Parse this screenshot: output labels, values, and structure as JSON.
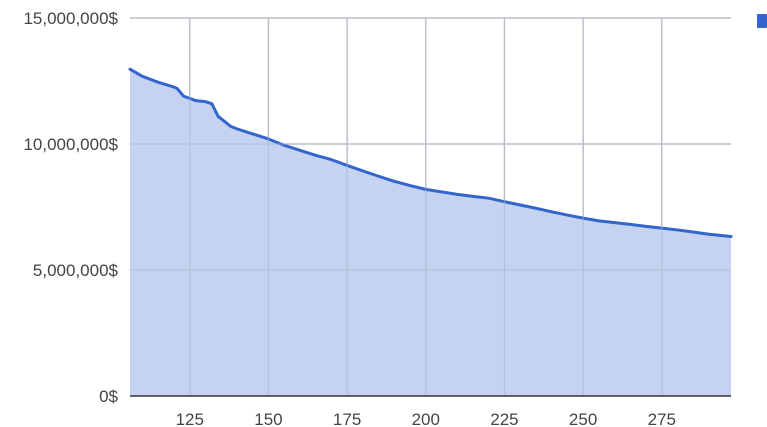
{
  "chart_data": {
    "type": "area",
    "title": "",
    "xlabel": "",
    "ylabel": "",
    "xlim": [
      106,
      297
    ],
    "ylim": [
      0,
      15000000
    ],
    "x_ticks": [
      125,
      150,
      175,
      200,
      225,
      250,
      275
    ],
    "x_tick_labels": [
      "125",
      "150",
      "175",
      "200",
      "225",
      "250",
      "275"
    ],
    "y_ticks": [
      0,
      5000000,
      10000000,
      15000000
    ],
    "y_tick_labels": [
      "0$",
      "5,000,000$",
      "10,000,000$",
      "15,000,000$"
    ],
    "grid": true,
    "legend": "top-right",
    "colors": {
      "line": "#3366cc",
      "fill": "#c2d1f0"
    },
    "series": [
      {
        "x": [
          106,
          110,
          115,
          120,
          121,
          123,
          127,
          130,
          132,
          134,
          136,
          138,
          140,
          145,
          150,
          155,
          160,
          165,
          168,
          170,
          175,
          180,
          185,
          190,
          195,
          200,
          205,
          210,
          215,
          220,
          225,
          230,
          235,
          240,
          245,
          250,
          255,
          260,
          265,
          270,
          275,
          280,
          285,
          290,
          297
        ],
        "values": [
          12970000,
          12680000,
          12450000,
          12260000,
          12200000,
          11900000,
          11720000,
          11680000,
          11600000,
          11100000,
          10900000,
          10700000,
          10600000,
          10400000,
          10200000,
          9950000,
          9750000,
          9550000,
          9450000,
          9380000,
          9150000,
          8930000,
          8720000,
          8520000,
          8350000,
          8200000,
          8100000,
          8000000,
          7920000,
          7850000,
          7710000,
          7580000,
          7450000,
          7310000,
          7180000,
          7060000,
          6950000,
          6880000,
          6810000,
          6730000,
          6660000,
          6590000,
          6510000,
          6420000,
          6330000
        ]
      }
    ]
  }
}
